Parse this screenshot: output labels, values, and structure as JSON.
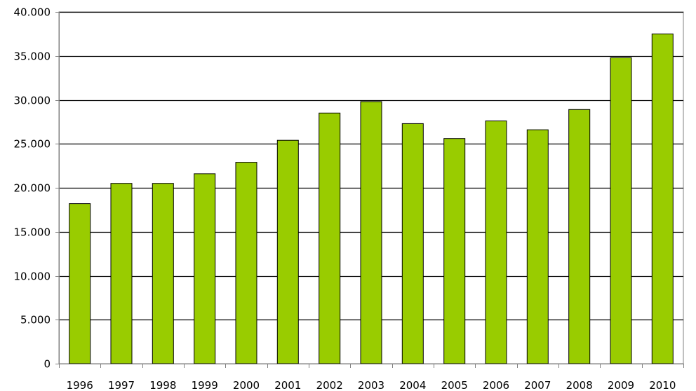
{
  "chart_data": {
    "type": "bar",
    "title": "",
    "xlabel": "",
    "ylabel": "",
    "categories": [
      "1996",
      "1997",
      "1998",
      "1999",
      "2000",
      "2001",
      "2002",
      "2003",
      "2004",
      "2005",
      "2006",
      "2007",
      "2008",
      "2009",
      "2010"
    ],
    "values": [
      18200,
      20500,
      20500,
      21600,
      22900,
      25400,
      28500,
      29800,
      27300,
      25600,
      27600,
      26600,
      28900,
      34800,
      37500
    ],
    "ylim": [
      0,
      40000
    ],
    "yticks": [
      0,
      5000,
      10000,
      15000,
      20000,
      25000,
      30000,
      35000,
      40000
    ],
    "ytick_labels": [
      "0",
      "5.000",
      "10.000",
      "15.000",
      "20.000",
      "25.000",
      "30.000",
      "35.000",
      "40.000"
    ],
    "grid": true,
    "legend": "none",
    "colors": {
      "bar_fill": "#99cc00",
      "bar_stroke": "#000000",
      "grid": "#000000",
      "axis": "#808080",
      "background": "#ffffff"
    }
  }
}
